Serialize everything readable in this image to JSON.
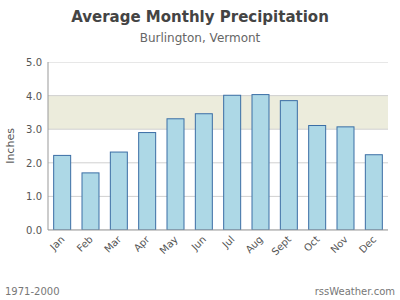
{
  "chart_data": {
    "type": "bar",
    "title": "Average Monthly Precipitation",
    "subtitle": "Burlington, Vermont",
    "ylabel": "Inches",
    "footer": [
      "1971-2000",
      "rssWeather.com"
    ],
    "categories": [
      "Jan",
      "Feb",
      "Mar",
      "Apr",
      "May",
      "Jun",
      "Jul",
      "Aug",
      "Sept",
      "Oct",
      "Nov",
      "Dec"
    ],
    "values": [
      2.22,
      1.7,
      2.32,
      2.9,
      3.31,
      3.46,
      4.01,
      4.03,
      3.85,
      3.11,
      3.07,
      2.24
    ],
    "color": "#add8e6",
    "shaded_band": [
      3.0,
      4.0
    ],
    "ylim": [
      0.0,
      5.0
    ],
    "yticks": [
      {
        "value": 0,
        "label": "0.0"
      },
      {
        "value": 1,
        "label": "1.0"
      },
      {
        "value": 2,
        "label": "2.0"
      },
      {
        "value": 3,
        "label": "3.0"
      },
      {
        "value": 4,
        "label": "4.0"
      },
      {
        "value": 5,
        "label": "5.0"
      }
    ],
    "grid": true
  }
}
